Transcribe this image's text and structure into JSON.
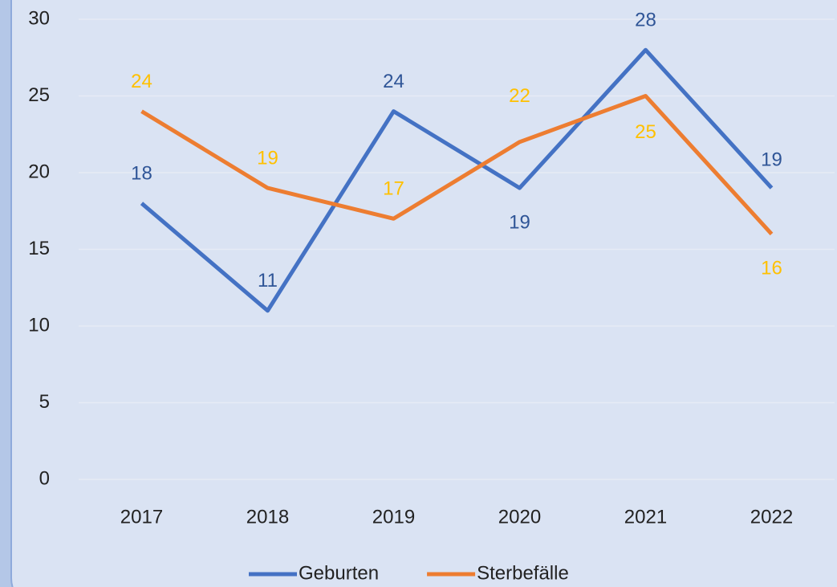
{
  "chart_data": {
    "type": "line",
    "categories": [
      "2017",
      "2018",
      "2019",
      "2020",
      "2021",
      "2022"
    ],
    "series": [
      {
        "name": "Geburten",
        "color": "#4472c4",
        "label_color": "#2f5597",
        "values": [
          18,
          11,
          24,
          19,
          28,
          19
        ]
      },
      {
        "name": "Sterbefälle",
        "color": "#ed7d31",
        "label_color": "#ffc000",
        "values": [
          24,
          19,
          17,
          22,
          25,
          16
        ]
      }
    ],
    "ylim": [
      0,
      30
    ],
    "yticks": [
      0,
      5,
      10,
      15,
      20,
      25,
      30
    ],
    "grid": true,
    "legend": "bottom"
  }
}
